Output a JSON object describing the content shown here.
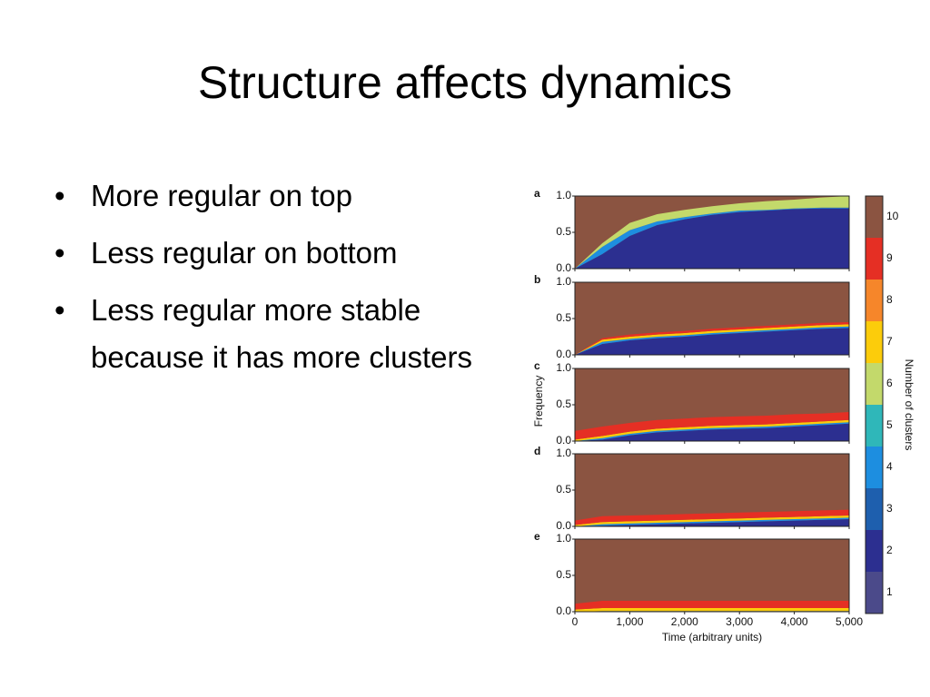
{
  "title": "Structure affects dynamics",
  "bullets": [
    "More regular on top",
    "Less regular on bottom",
    "Less regular more stable because it has more clusters"
  ],
  "chart_data": {
    "type": "area",
    "x": [
      0,
      500,
      1000,
      1500,
      2000,
      2500,
      3000,
      3500,
      4000,
      4500,
      5000
    ],
    "xlim": [
      0,
      5000
    ],
    "xticks": [
      0,
      {
        "value": 1000,
        "label": "1,000"
      },
      {
        "value": 2000,
        "label": "2,000"
      },
      {
        "value": 3000,
        "label": "3,000"
      },
      {
        "value": 4000,
        "label": "4,000"
      },
      {
        "value": 5000,
        "label": "5,000"
      }
    ],
    "ylim": [
      0,
      1
    ],
    "yticks": [
      {
        "value": 0,
        "label": "0.0"
      },
      0.5,
      {
        "value": 1,
        "label": "1.0"
      }
    ],
    "x_label": "Time (arbitrary units)",
    "y_label": "Frequency",
    "colorbar": {
      "title": "Number of clusters",
      "labels": [
        "1",
        "2",
        "3",
        "4",
        "5",
        "6",
        "7",
        "8",
        "9",
        "10"
      ],
      "colors": [
        "#4b4a8a",
        "#2c2f90",
        "#1e5fae",
        "#1d8ee0",
        "#2fb7b9",
        "#c3d96b",
        "#fccc0b",
        "#f6862a",
        "#e52f24",
        "#8b5441"
      ]
    },
    "panels": [
      {
        "label": "a",
        "series": [
          {
            "color": "#2c2f90",
            "values": [
              0,
              0.2,
              0.45,
              0.6,
              0.68,
              0.74,
              0.78,
              0.8,
              0.82,
              0.83,
              0.83
            ]
          },
          {
            "color": "#1d8ee0",
            "values": [
              0,
              0.1,
              0.08,
              0.05,
              0.03,
              0.02,
              0.02,
              0.01,
              0.01,
              0.01,
              0.01
            ]
          },
          {
            "color": "#c3d96b",
            "values": [
              0,
              0.05,
              0.1,
              0.1,
              0.1,
              0.1,
              0.1,
              0.12,
              0.12,
              0.14,
              0.16
            ]
          }
        ]
      },
      {
        "label": "b",
        "series": [
          {
            "color": "#2c2f90",
            "values": [
              0,
              0.15,
              0.2,
              0.23,
              0.25,
              0.28,
              0.3,
              0.32,
              0.34,
              0.36,
              0.37
            ]
          },
          {
            "color": "#1d8ee0",
            "values": [
              0,
              0.03,
              0.02,
              0.02,
              0.02,
              0.02,
              0.02,
              0.02,
              0.02,
              0.02,
              0.02
            ]
          },
          {
            "color": "#fccc0b",
            "values": [
              0,
              0.03,
              0.03,
              0.03,
              0.03,
              0.03,
              0.03,
              0.03,
              0.03,
              0.03,
              0.03
            ]
          },
          {
            "color": "#e52f24",
            "values": [
              0,
              0.02,
              0.03,
              0.03,
              0.03,
              0.03,
              0.03,
              0.03,
              0.03,
              0.03,
              0.03
            ]
          }
        ]
      },
      {
        "label": "c",
        "series": [
          {
            "color": "#2c2f90",
            "values": [
              0,
              0.02,
              0.08,
              0.12,
              0.14,
              0.16,
              0.17,
              0.18,
              0.2,
              0.22,
              0.24
            ]
          },
          {
            "color": "#1d8ee0",
            "values": [
              0,
              0.02,
              0.02,
              0.02,
              0.02,
              0.02,
              0.02,
              0.02,
              0.02,
              0.02,
              0.02
            ]
          },
          {
            "color": "#fccc0b",
            "values": [
              0.02,
              0.03,
              0.03,
              0.03,
              0.03,
              0.03,
              0.03,
              0.03,
              0.03,
              0.03,
              0.03
            ]
          },
          {
            "color": "#e52f24",
            "values": [
              0.12,
              0.13,
              0.12,
              0.12,
              0.12,
              0.12,
              0.12,
              0.12,
              0.12,
              0.11,
              0.11
            ]
          }
        ]
      },
      {
        "label": "d",
        "series": [
          {
            "color": "#2c2f90",
            "values": [
              0,
              0.01,
              0.02,
              0.03,
              0.04,
              0.05,
              0.06,
              0.07,
              0.08,
              0.09,
              0.1
            ]
          },
          {
            "color": "#1d8ee0",
            "values": [
              0,
              0.02,
              0.02,
              0.02,
              0.02,
              0.02,
              0.02,
              0.02,
              0.02,
              0.02,
              0.02
            ]
          },
          {
            "color": "#fccc0b",
            "values": [
              0.02,
              0.03,
              0.03,
              0.03,
              0.03,
              0.03,
              0.03,
              0.03,
              0.03,
              0.03,
              0.03
            ]
          },
          {
            "color": "#e52f24",
            "values": [
              0.06,
              0.08,
              0.08,
              0.08,
              0.08,
              0.08,
              0.08,
              0.08,
              0.08,
              0.08,
              0.08
            ]
          }
        ]
      },
      {
        "label": "e",
        "series": [
          {
            "color": "#1d8ee0",
            "values": [
              0,
              0.01,
              0.01,
              0.01,
              0.01,
              0.01,
              0.01,
              0.01,
              0.01,
              0.01,
              0.01
            ]
          },
          {
            "color": "#fccc0b",
            "values": [
              0.03,
              0.04,
              0.04,
              0.04,
              0.04,
              0.04,
              0.04,
              0.04,
              0.04,
              0.04,
              0.04
            ]
          },
          {
            "color": "#e52f24",
            "values": [
              0.08,
              0.1,
              0.1,
              0.1,
              0.1,
              0.1,
              0.1,
              0.1,
              0.1,
              0.1,
              0.1
            ]
          }
        ]
      }
    ]
  }
}
